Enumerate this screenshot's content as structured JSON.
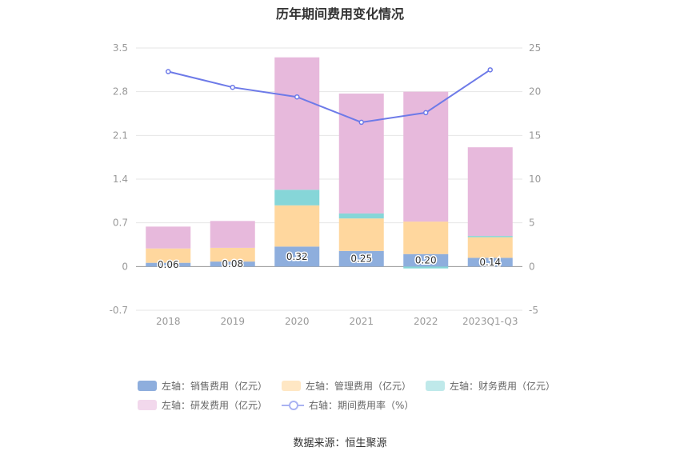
{
  "colors": {
    "sales": "#8eaedd",
    "mgmt": "#ffd79e",
    "fin": "#86d6d8",
    "rd": "#e7b9dc",
    "rate": "#6d7ae8",
    "sales_legend": "#8eaedd",
    "mgmt_legend": "#ffe7c4",
    "fin_legend": "#bfe9ea",
    "rd_legend": "#f2d8ec"
  },
  "chart_data": {
    "type": "bar",
    "title": "历年期间费用变化情况",
    "categories": [
      "2018",
      "2019",
      "2020",
      "2021",
      "2022",
      "2023Q1-Q3"
    ],
    "stacked": true,
    "y_left": {
      "min": -0.7,
      "max": 3.5,
      "ticks": [
        "-0.7",
        "0",
        "0.7",
        "1.4",
        "2.1",
        "2.8",
        "3.5"
      ]
    },
    "y_right": {
      "min": -5,
      "max": 25,
      "ticks": [
        "-5",
        "0",
        "5",
        "10",
        "15",
        "20",
        "25"
      ]
    },
    "series": [
      {
        "name": "左轴：销售费用（亿元）",
        "values": [
          0.06,
          0.08,
          0.32,
          0.25,
          0.2,
          0.14
        ],
        "labels": [
          "0.06",
          "0.08",
          "0.32",
          "0.25",
          "0.20",
          "0.14"
        ]
      },
      {
        "name": "左轴：管理费用（亿元）",
        "values": [
          0.23,
          0.22,
          0.66,
          0.52,
          0.52,
          0.33
        ]
      },
      {
        "name": "左轴：财务费用（亿元）",
        "values": [
          0.0,
          0.0,
          0.25,
          0.08,
          -0.03,
          0.02
        ]
      },
      {
        "name": "左轴：研发费用（亿元）",
        "values": [
          0.35,
          0.43,
          2.12,
          1.92,
          2.08,
          1.42
        ]
      }
    ],
    "line": {
      "name": "右轴：期间费用率（%）",
      "values": [
        22.3,
        20.5,
        19.4,
        16.5,
        17.6,
        22.5
      ]
    },
    "grid": true
  },
  "source_text": "数据来源：恒生聚源"
}
